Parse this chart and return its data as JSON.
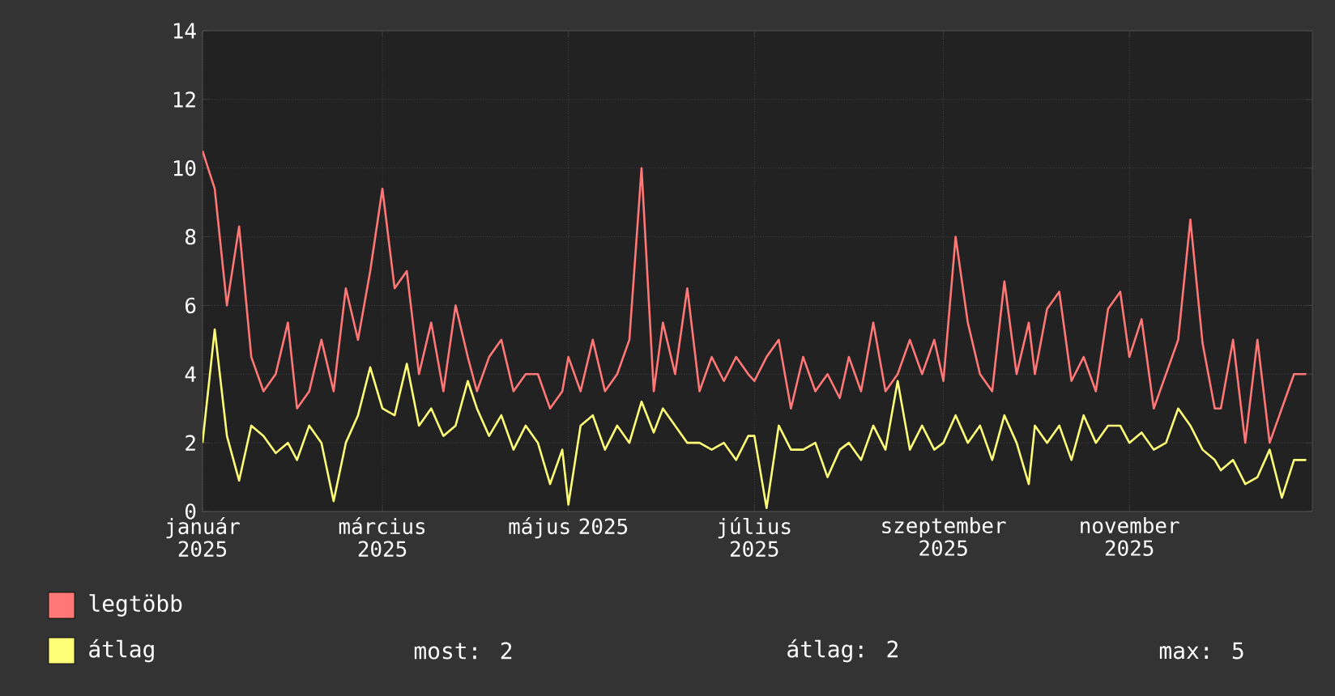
{
  "chart_data": {
    "type": "line",
    "x": [
      "2025-01-01",
      "2025-01-05",
      "2025-01-09",
      "2025-01-13",
      "2025-01-17",
      "2025-01-21",
      "2025-01-25",
      "2025-01-29",
      "2025-02-01",
      "2025-02-05",
      "2025-02-09",
      "2025-02-13",
      "2025-02-17",
      "2025-02-21",
      "2025-02-25",
      "2025-03-01",
      "2025-03-05",
      "2025-03-09",
      "2025-03-13",
      "2025-03-17",
      "2025-03-21",
      "2025-03-25",
      "2025-03-29",
      "2025-04-01",
      "2025-04-05",
      "2025-04-09",
      "2025-04-13",
      "2025-04-17",
      "2025-04-21",
      "2025-04-25",
      "2025-04-29",
      "2025-05-01",
      "2025-05-05",
      "2025-05-09",
      "2025-05-13",
      "2025-05-17",
      "2025-05-21",
      "2025-05-25",
      "2025-05-29",
      "2025-06-01",
      "2025-06-05",
      "2025-06-09",
      "2025-06-13",
      "2025-06-17",
      "2025-06-21",
      "2025-06-25",
      "2025-06-29",
      "2025-07-01",
      "2025-07-05",
      "2025-07-09",
      "2025-07-13",
      "2025-07-17",
      "2025-07-21",
      "2025-07-25",
      "2025-07-29",
      "2025-08-01",
      "2025-08-05",
      "2025-08-09",
      "2025-08-13",
      "2025-08-17",
      "2025-08-21",
      "2025-08-25",
      "2025-08-29",
      "2025-09-01",
      "2025-09-05",
      "2025-09-09",
      "2025-09-13",
      "2025-09-17",
      "2025-09-21",
      "2025-09-25",
      "2025-09-29",
      "2025-10-01",
      "2025-10-05",
      "2025-10-09",
      "2025-10-13",
      "2025-10-17",
      "2025-10-21",
      "2025-10-25",
      "2025-10-29",
      "2025-11-01",
      "2025-11-05",
      "2025-11-09",
      "2025-11-13",
      "2025-11-17",
      "2025-11-21",
      "2025-11-25",
      "2025-11-29",
      "2025-12-01",
      "2025-12-05",
      "2025-12-09",
      "2025-12-13",
      "2025-12-17",
      "2025-12-21",
      "2025-12-25",
      "2025-12-29"
    ],
    "series": [
      {
        "name": "legtöbb",
        "color": "#ff7777",
        "values": [
          10.5,
          9.4,
          6.0,
          8.3,
          4.5,
          3.5,
          4.0,
          5.5,
          3.0,
          3.5,
          5.0,
          3.5,
          6.5,
          5.0,
          7.0,
          9.4,
          6.5,
          7.0,
          4.0,
          5.5,
          3.5,
          6.0,
          4.5,
          3.5,
          4.5,
          5.0,
          3.5,
          4.0,
          4.0,
          3.0,
          3.5,
          4.5,
          3.5,
          5.0,
          3.5,
          4.0,
          5.0,
          10.0,
          3.5,
          5.5,
          4.0,
          6.5,
          3.5,
          4.5,
          3.8,
          4.5,
          4.0,
          3.8,
          4.5,
          5.0,
          3.0,
          4.5,
          3.5,
          4.0,
          3.3,
          4.5,
          3.5,
          5.5,
          3.5,
          4.0,
          5.0,
          4.0,
          5.0,
          3.8,
          8.0,
          5.5,
          4.0,
          3.5,
          6.7,
          4.0,
          5.5,
          4.0,
          5.9,
          6.4,
          3.8,
          4.5,
          3.5,
          5.9,
          6.4,
          4.5,
          5.6,
          3.0,
          4.0,
          5.0,
          8.5,
          4.9,
          3.0,
          3.0,
          5.0,
          2.0,
          5.0,
          2.0,
          3.0,
          4.0,
          4.0
        ]
      },
      {
        "name": "átlag",
        "color": "#ffff77",
        "values": [
          2.0,
          5.3,
          2.2,
          0.9,
          2.5,
          2.2,
          1.7,
          2.0,
          1.5,
          2.5,
          2.0,
          0.3,
          2.0,
          2.8,
          4.2,
          3.0,
          2.8,
          4.3,
          2.5,
          3.0,
          2.2,
          2.5,
          3.8,
          3.0,
          2.2,
          2.8,
          1.8,
          2.5,
          2.0,
          0.8,
          1.8,
          0.2,
          2.5,
          2.8,
          1.8,
          2.5,
          2.0,
          3.2,
          2.3,
          3.0,
          2.5,
          2.0,
          2.0,
          1.8,
          2.0,
          1.5,
          2.2,
          2.2,
          0.1,
          2.5,
          1.8,
          1.8,
          2.0,
          1.0,
          1.8,
          2.0,
          1.5,
          2.5,
          1.8,
          3.8,
          1.8,
          2.5,
          1.8,
          2.0,
          2.8,
          2.0,
          2.5,
          1.5,
          2.8,
          2.0,
          0.8,
          2.5,
          2.0,
          2.5,
          1.5,
          2.8,
          2.0,
          2.5,
          2.5,
          2.0,
          2.3,
          1.8,
          2.0,
          3.0,
          2.5,
          1.8,
          1.5,
          1.2,
          1.5,
          0.8,
          1.0,
          1.8,
          0.4,
          1.5,
          1.5
        ]
      }
    ],
    "xlim": [
      "2025-01-01",
      "2025-12-31"
    ],
    "xticks": [
      {
        "value": "2025-01-01",
        "label": "január 2025"
      },
      {
        "value": "2025-03-01",
        "label": "március 2025"
      },
      {
        "value": "2025-05-01",
        "label": "május 2025"
      },
      {
        "value": "2025-07-01",
        "label": "július 2025"
      },
      {
        "value": "2025-09-01",
        "label": "szeptember 2025"
      },
      {
        "value": "2025-11-01",
        "label": "november 2025"
      }
    ],
    "ylim": [
      0,
      14
    ],
    "yticks": [
      0,
      2,
      4,
      6,
      8,
      10,
      12,
      14
    ],
    "grid": true,
    "legend": "bottom",
    "annotations": [
      "most: 2",
      "átlag: 2",
      "max: 5"
    ]
  }
}
